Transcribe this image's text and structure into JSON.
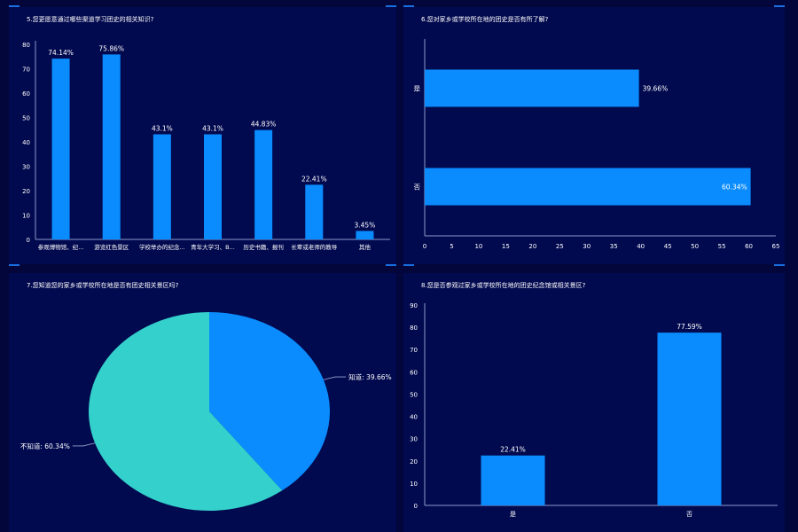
{
  "colors": {
    "background": "#02063a",
    "panel": "#020a4f",
    "bar": "#0a8cff",
    "pie_a": "#0a8cff",
    "pie_b": "#33d0cc",
    "axis": "#8a9acb",
    "text": "#ffffff"
  },
  "chart_data": [
    {
      "type": "bar",
      "title": "5.您更愿意通过哪些渠道学习团史的相关知识?",
      "categories": [
        "参观博物馆、纪...",
        "游览红色景区",
        "学校举办的纪念...",
        "青年大学习、B...",
        "历史书籍、报刊",
        "长辈或老师的教导",
        "其他"
      ],
      "values": [
        74.14,
        75.86,
        43.1,
        43.1,
        44.83,
        22.41,
        3.45
      ],
      "data_labels": [
        "74.14%",
        "75.86%",
        "43.1%",
        "43.1%",
        "44.83%",
        "22.41%",
        "3.45%"
      ],
      "ylim": [
        0,
        80
      ],
      "yticks": [
        0,
        10,
        20,
        30,
        40,
        50,
        60,
        70,
        80
      ],
      "grid": false
    },
    {
      "type": "bar",
      "orientation": "horizontal",
      "title": "6.您对家乡或学校所在地的团史是否有所了解?",
      "categories": [
        "是",
        "否"
      ],
      "values": [
        39.66,
        60.34
      ],
      "data_labels": [
        "39.66%",
        "60.34%"
      ],
      "xlim": [
        0,
        65
      ],
      "xticks": [
        0,
        5,
        10,
        15,
        20,
        25,
        30,
        35,
        40,
        45,
        50,
        55,
        60,
        65
      ],
      "grid": false
    },
    {
      "type": "pie",
      "title": "7.您知道您的家乡或学校所在地是否有团史相关景区吗?",
      "labels": [
        "知道",
        "不知道"
      ],
      "values": [
        39.66,
        60.34
      ],
      "data_labels": [
        "知道: 39.66%",
        "不知道: 60.34%"
      ]
    },
    {
      "type": "bar",
      "title": "8.您是否参观过家乡或学校所在地的团史纪念馆或相关景区?",
      "categories": [
        "是",
        "否"
      ],
      "values": [
        22.41,
        77.59
      ],
      "data_labels": [
        "22.41%",
        "77.59%"
      ],
      "ylim": [
        0,
        90
      ],
      "yticks": [
        0,
        10,
        20,
        30,
        40,
        50,
        60,
        70,
        80,
        90
      ],
      "grid": false
    }
  ]
}
